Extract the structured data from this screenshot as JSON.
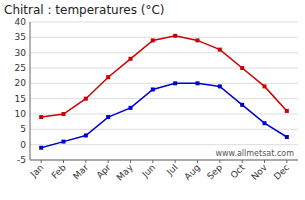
{
  "chart_data": {
    "type": "line",
    "title": "Chitral : temperatures (°C)",
    "categories": [
      "Jan",
      "Feb",
      "Mar",
      "Apr",
      "May",
      "Jun",
      "Jul",
      "Aug",
      "Sep",
      "Oct",
      "Nov",
      "Dec"
    ],
    "series": [
      {
        "color": "#cc0000",
        "marker": "square",
        "values": [
          9,
          10,
          15,
          22,
          28,
          34,
          35.5,
          34,
          31,
          25,
          19,
          11
        ]
      },
      {
        "color": "#0000cc",
        "marker": "square",
        "values": [
          -1,
          1,
          3,
          9,
          12,
          18,
          20,
          20,
          19,
          13,
          7,
          2.5
        ]
      }
    ],
    "ylim": [
      -5,
      40
    ],
    "yticks": [
      -5,
      0,
      5,
      10,
      15,
      20,
      25,
      30,
      35,
      40
    ],
    "grid": true,
    "annotations": [
      "www.allmetsat.com"
    ]
  }
}
